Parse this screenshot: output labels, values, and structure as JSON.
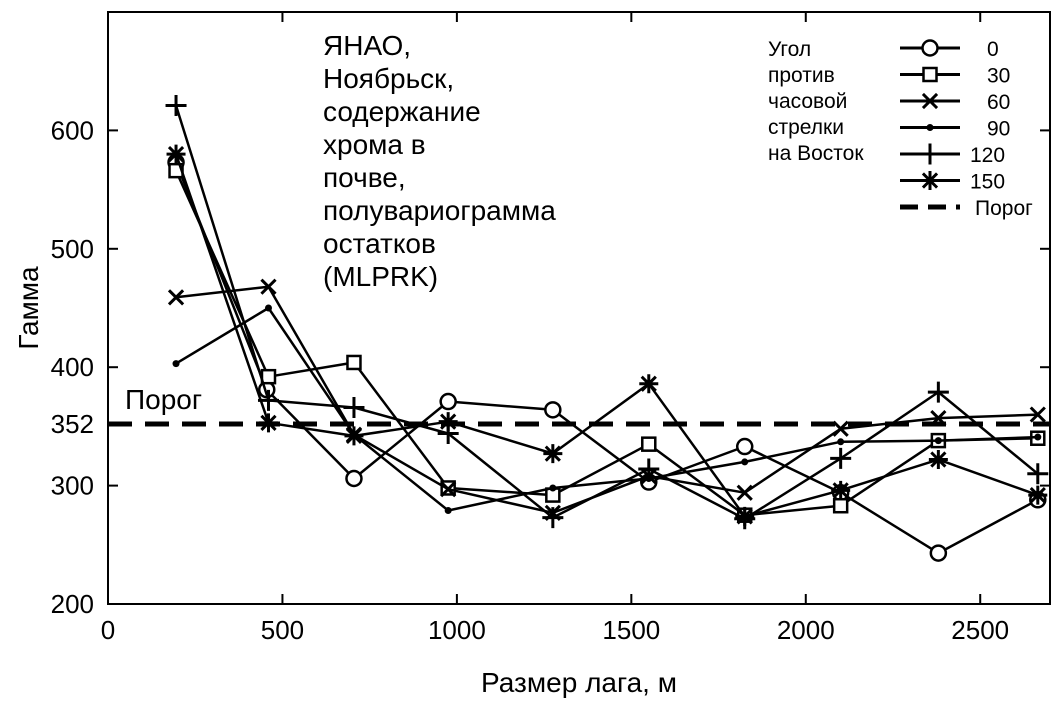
{
  "chart_data": {
    "type": "line",
    "title_lines": [
      "ЯНАО,",
      "Ноябрьск,",
      "содержание",
      "хрома в",
      "почве,",
      "полувариограмма",
      "остатков",
      "(MLPRK)"
    ],
    "xlabel": "Размер лага, м",
    "ylabel": "Гамма",
    "xlim": [
      0,
      2700
    ],
    "ylim": [
      200,
      700
    ],
    "xticks": [
      0,
      500,
      1000,
      1500,
      2000,
      2500
    ],
    "xtick_labels": [
      "0",
      "500",
      "1000",
      "1500",
      "2000",
      "2500"
    ],
    "yticks": [
      200,
      300,
      352,
      400,
      500,
      600
    ],
    "ytick_labels": [
      "200",
      "300",
      "352",
      "400",
      "500",
      "600"
    ],
    "grid": false,
    "legend_position": "top-right",
    "legend_title_lines": [
      "Угол",
      "против",
      "часовой",
      "стрелки",
      "на Восток"
    ],
    "threshold": {
      "value": 352,
      "label": "Порог",
      "legend_label": "Порог"
    },
    "series": [
      {
        "name": "0",
        "marker": "circle",
        "x": [
          195,
          455,
          705,
          975,
          1275,
          1550,
          1825,
          2100,
          2380,
          2665
        ],
        "y": [
          573,
          381,
          306,
          371,
          364,
          303,
          333,
          294,
          243,
          288
        ]
      },
      {
        "name": "30",
        "marker": "square",
        "x": [
          195,
          460,
          705,
          975,
          1275,
          1550,
          1825,
          2100,
          2380,
          2665
        ],
        "y": [
          566,
          392,
          404,
          298,
          292,
          335,
          275,
          283,
          338,
          340
        ]
      },
      {
        "name": "60",
        "marker": "x",
        "x": [
          195,
          460,
          705,
          975,
          1275,
          1550,
          1825,
          2100,
          2380,
          2665
        ],
        "y": [
          459,
          468,
          343,
          297,
          277,
          308,
          294,
          348,
          357,
          360
        ]
      },
      {
        "name": "90",
        "marker": "dot",
        "x": [
          195,
          460,
          705,
          975,
          1275,
          1550,
          1825,
          2100,
          2380,
          2665
        ],
        "y": [
          403,
          450,
          343,
          279,
          298,
          306,
          320,
          337,
          338,
          341
        ]
      },
      {
        "name": "120",
        "marker": "plus",
        "x": [
          195,
          460,
          705,
          975,
          1275,
          1550,
          1825,
          2100,
          2380,
          2665
        ],
        "y": [
          621,
          372,
          366,
          344,
          273,
          314,
          272,
          323,
          379,
          310
        ]
      },
      {
        "name": "150",
        "marker": "asterisk",
        "x": [
          195,
          460,
          705,
          975,
          1275,
          1550,
          1825,
          2100,
          2380,
          2665
        ],
        "y": [
          580,
          353,
          342,
          354,
          327,
          386,
          274,
          296,
          322,
          292
        ]
      }
    ]
  }
}
